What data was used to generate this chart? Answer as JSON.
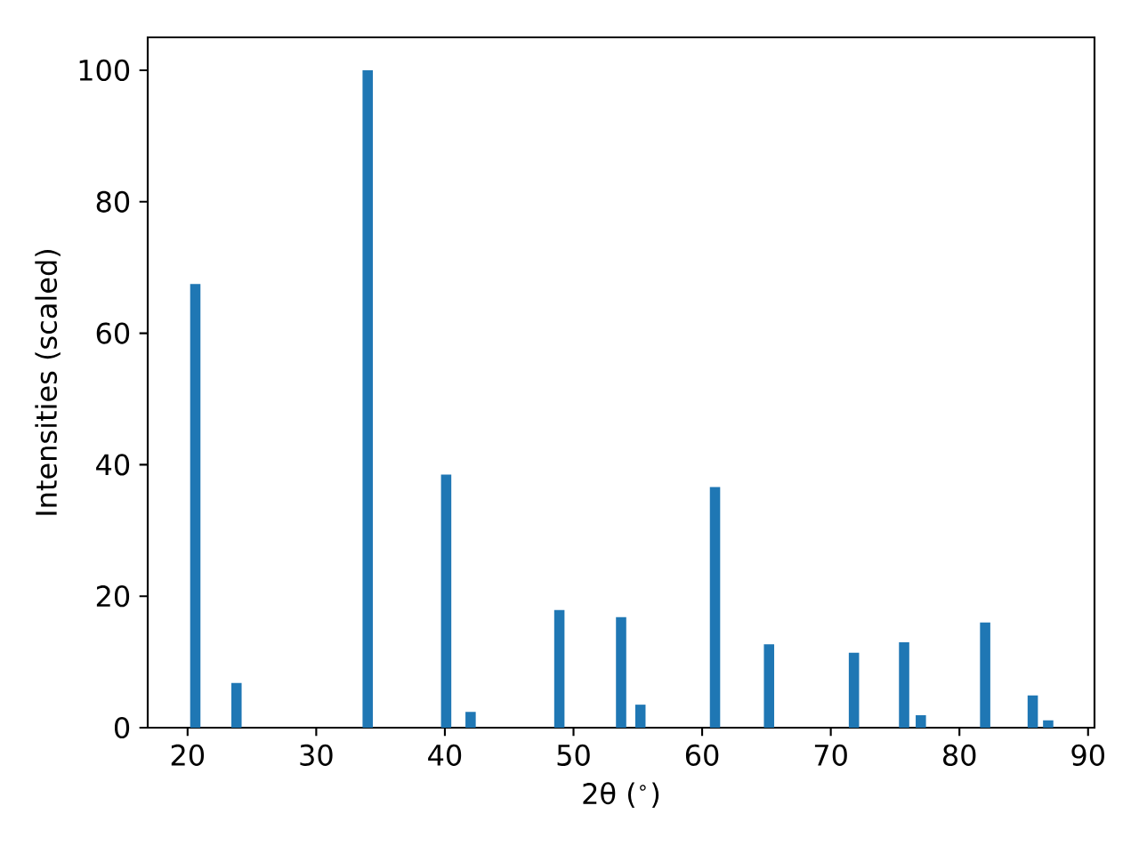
{
  "chart_data": {
    "type": "bar",
    "xlabel": "2θ ($^{∘}$)",
    "ylabel": "Intensities (scaled)",
    "x": [
      20.6,
      23.8,
      34.0,
      40.1,
      42.0,
      48.9,
      53.7,
      55.2,
      61.0,
      65.2,
      71.8,
      75.7,
      77.0,
      82.0,
      85.7,
      86.9
    ],
    "values": [
      67.5,
      6.8,
      100,
      38.5,
      2.4,
      17.9,
      16.8,
      3.5,
      36.6,
      12.7,
      11.4,
      13.0,
      1.9,
      16.0,
      4.9,
      1.1
    ],
    "color": "#1f77b4",
    "xlim": [
      16.9,
      90.5
    ],
    "ylim": [
      0,
      105
    ],
    "xticks": [
      20,
      30,
      40,
      50,
      60,
      70,
      80,
      90
    ],
    "yticks": [
      0,
      20,
      40,
      60,
      80,
      100
    ]
  }
}
